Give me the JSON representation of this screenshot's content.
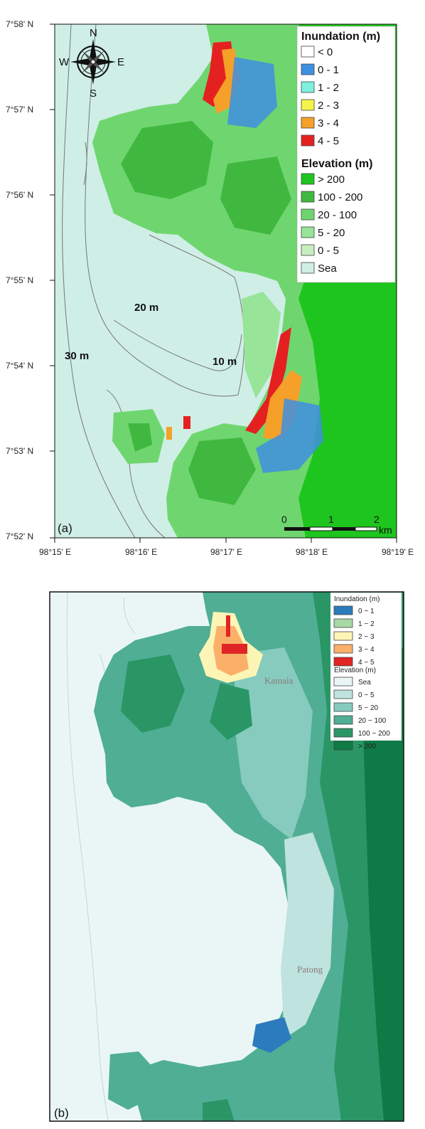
{
  "panel_a": {
    "label": "(a)",
    "lat_ticks": [
      "7°58' N",
      "7°57' N",
      "7°56' N",
      "7°55' N",
      "7°54' N",
      "7°53' N",
      "7°52' N"
    ],
    "lon_ticks": [
      "98°15' E",
      "98°16' E",
      "98°17' E",
      "98°18' E",
      "98°19' E"
    ],
    "compass": {
      "n": "N",
      "s": "S",
      "e": "E",
      "w": "W"
    },
    "depth_labels": [
      "20 m",
      "30 m",
      "10 m"
    ],
    "scale_bar": {
      "ticks": [
        "0",
        "1",
        "2"
      ],
      "unit": "km"
    },
    "legend": {
      "inundation_title": "Inundation (m)",
      "inundation_items": [
        {
          "label": "< 0",
          "color": "#ffffff"
        },
        {
          "label": "0 - 1",
          "color": "#3f8fe0"
        },
        {
          "label": "1 - 2",
          "color": "#7df0e0"
        },
        {
          "label": "2 - 3",
          "color": "#f4f44a"
        },
        {
          "label": "3 - 4",
          "color": "#f5a028"
        },
        {
          "label": "4 - 5",
          "color": "#e52020"
        }
      ],
      "elevation_title": "Elevation (m)",
      "elevation_items": [
        {
          "label": "> 200",
          "color": "#1fc51f"
        },
        {
          "label": "100 - 200",
          "color": "#40b840"
        },
        {
          "label": "20 - 100",
          "color": "#6fd66f"
        },
        {
          "label": "5 - 20",
          "color": "#98e498"
        },
        {
          "label": "0 - 5",
          "color": "#c8eec0"
        },
        {
          "label": "Sea",
          "color": "#cfeee6"
        }
      ]
    },
    "colors": {
      "sea": "#cfeee6",
      "land_low": "#9fe09f",
      "land_mid": "#6fd66f",
      "land_high": "#3cbc3c",
      "land_top": "#1fc51f"
    }
  },
  "panel_b": {
    "label": "(b)",
    "place_labels": [
      "Kamala",
      "Patong"
    ],
    "legend": {
      "inundation_title": "Inundation (m)",
      "inundation_items": [
        {
          "label": "0 − 1",
          "color": "#2b7bbd"
        },
        {
          "label": "1 − 2",
          "color": "#a8d9a5"
        },
        {
          "label": "2 − 3",
          "color": "#fdf5b5"
        },
        {
          "label": "3 − 4",
          "color": "#fbb06a"
        },
        {
          "label": "4 − 5",
          "color": "#e12424"
        }
      ],
      "elevation_title": "Elevation (m)",
      "elevation_items": [
        {
          "label": "Sea",
          "color": "#eaf6f6"
        },
        {
          "label": "0 − 5",
          "color": "#bfe3de"
        },
        {
          "label": "5 − 20",
          "color": "#86cbbe"
        },
        {
          "label": "20 − 100",
          "color": "#4fae94"
        },
        {
          "label": "100 − 200",
          "color": "#2a9666"
        },
        {
          "label": "> 200",
          "color": "#0e7a45"
        }
      ]
    },
    "colors": {
      "sea": "#eaf6f6",
      "coast": "#bfe3de",
      "land_low": "#86cbbe",
      "land_mid": "#4fae94",
      "land_high": "#2a9666",
      "land_top": "#0e7a45"
    }
  }
}
